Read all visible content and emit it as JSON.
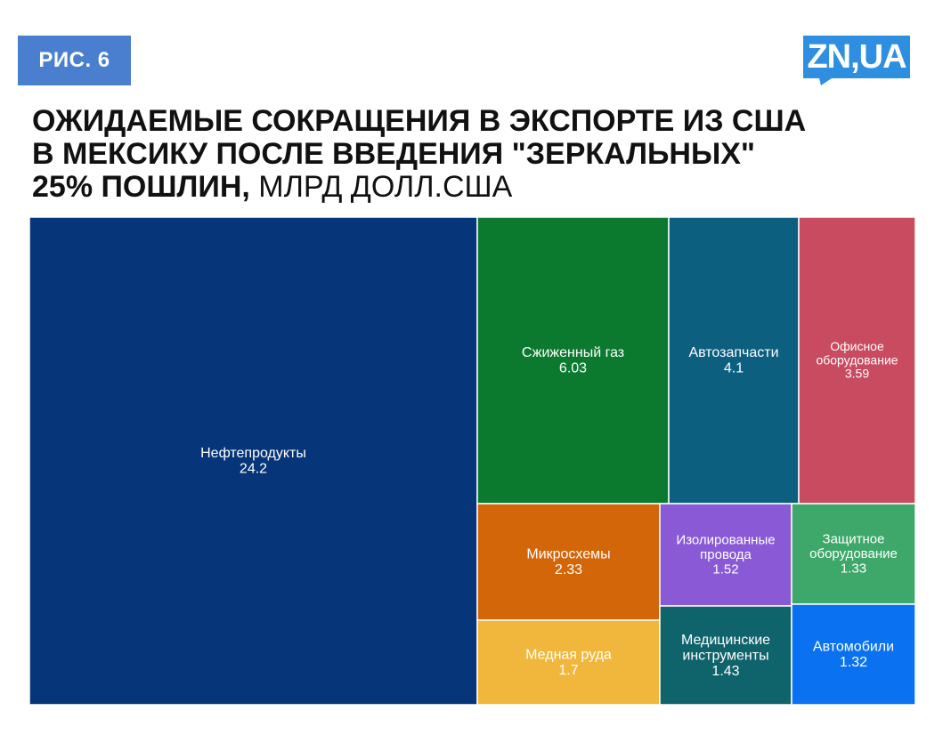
{
  "badge": "РИС. 6",
  "logo_text": "ZN,UA",
  "title": {
    "bold_line1": "ОЖИДАЕМЫЕ СОКРАЩЕНИЯ В ЭКСПОРТЕ ИЗ США",
    "bold_line2": "В МЕКСИКУ ПОСЛЕ ВВЕДЕНИЯ \"ЗЕРКАЛЬНЫХ\"",
    "bold_line3": "25% ПОШЛИН,",
    "unit": " МЛРД ДОЛЛ.США"
  },
  "colors": {
    "badge": "#4a7fd0",
    "logo": "#2e8fe0"
  },
  "chart_data": {
    "type": "treemap",
    "unit": "млрд долл. США",
    "items": [
      {
        "label": "Нефтепродукты",
        "value": 24.2,
        "display": "24.2",
        "color": "#063679"
      },
      {
        "label": "Сжиженный газ",
        "value": 6.03,
        "display": "6.03",
        "color": "#0b7a2f"
      },
      {
        "label": "Автозапчасти",
        "value": 4.1,
        "display": "4.1",
        "color": "#0d5f80"
      },
      {
        "label": "Офисное оборудование",
        "value": 3.59,
        "display": "3.59",
        "color": "#c84b5f"
      },
      {
        "label": "Микросхемы",
        "value": 2.33,
        "display": "2.33",
        "color": "#d4660a"
      },
      {
        "label": "Медная руда",
        "value": 1.7,
        "display": "1.7",
        "color": "#f1b73c"
      },
      {
        "label": "Изолированные провода",
        "value": 1.52,
        "display": "1.52",
        "color": "#8a5ad6"
      },
      {
        "label": "Медицинские инструменты",
        "value": 1.43,
        "display": "1.43",
        "color": "#0f636b"
      },
      {
        "label": "Защитное оборудование",
        "value": 1.33,
        "display": "1.33",
        "color": "#3ea86a"
      },
      {
        "label": "Автомобили",
        "value": 1.32,
        "display": "1.32",
        "color": "#0a72f0"
      }
    ]
  }
}
